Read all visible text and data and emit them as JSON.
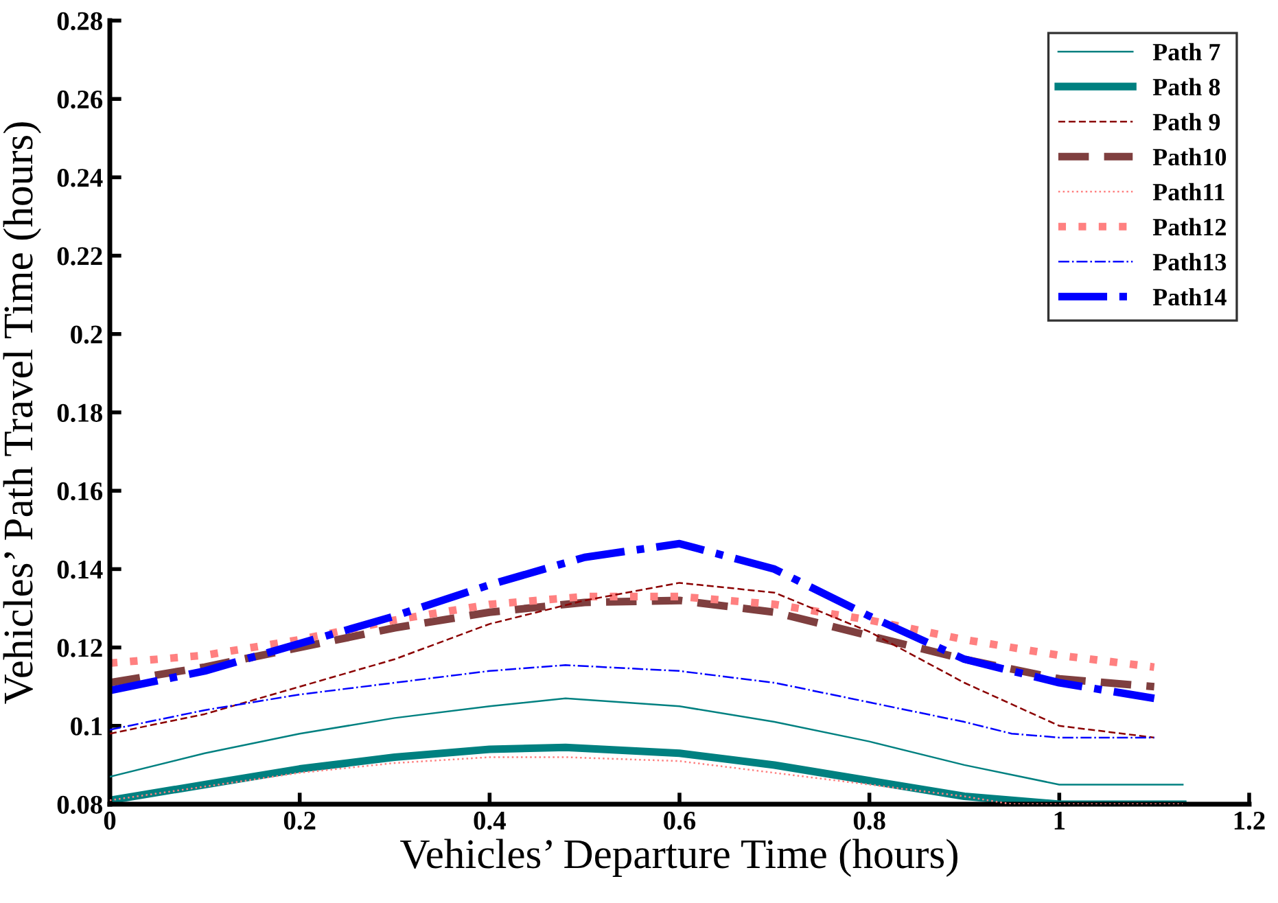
{
  "chart_data": {
    "type": "line",
    "xlabel": "Vehicles’ Departure Time (hours)",
    "ylabel": "Vehicles’ Path Travel Time (hours)",
    "x": [
      0,
      0.1,
      0.2,
      0.3,
      0.4,
      0.5,
      0.6,
      0.7,
      0.8,
      0.9,
      1.0,
      1.1
    ],
    "xlim": [
      0,
      1.2
    ],
    "xticks": [
      0,
      0.2,
      0.4,
      0.6,
      0.8,
      1,
      1.2
    ],
    "ylim": [
      0.08,
      0.28
    ],
    "yticks": [
      0.08,
      0.1,
      0.12,
      0.14,
      0.16,
      0.18,
      0.2,
      0.22,
      0.24,
      0.26,
      0.28
    ],
    "grid": false,
    "legend": "top right",
    "series": [
      {
        "name": "Path 7",
        "color": "#008080",
        "line_style": "solid",
        "x": [
          0,
          0.1,
          0.2,
          0.3,
          0.4,
          0.48,
          0.6,
          0.7,
          0.8,
          0.9,
          1.0,
          1.13
        ],
        "values": [
          0.087,
          0.093,
          0.098,
          0.102,
          0.105,
          0.107,
          0.105,
          0.101,
          0.096,
          0.09,
          0.085,
          0.085
        ]
      },
      {
        "name": "Path 8",
        "color": "#008080",
        "line_style": "solid",
        "x": [
          0,
          0.1,
          0.2,
          0.3,
          0.4,
          0.48,
          0.6,
          0.7,
          0.8,
          0.9,
          0.95,
          1.0,
          1.13
        ],
        "values": [
          0.081,
          0.085,
          0.089,
          0.092,
          0.094,
          0.0945,
          0.093,
          0.09,
          0.086,
          0.082,
          0.081,
          0.08,
          0.08
        ]
      },
      {
        "name": "Path 9",
        "color": "#8b0000",
        "line_style": "dashed",
        "values": [
          0.098,
          0.103,
          0.11,
          0.117,
          0.126,
          0.132,
          0.1365,
          0.134,
          0.124,
          0.111,
          0.1,
          0.097
        ]
      },
      {
        "name": "Path10",
        "color": "#7f3f3f",
        "line_style": "dashed",
        "values": [
          0.111,
          0.115,
          0.12,
          0.125,
          0.129,
          0.1315,
          0.132,
          0.129,
          0.123,
          0.117,
          0.112,
          0.11
        ]
      },
      {
        "name": "Path11",
        "color": "#ff8080",
        "line_style": "dotted",
        "x": [
          0,
          0.1,
          0.2,
          0.3,
          0.4,
          0.48,
          0.6,
          0.7,
          0.8,
          0.9,
          0.95,
          1.0,
          1.13
        ],
        "values": [
          0.081,
          0.0845,
          0.088,
          0.0905,
          0.092,
          0.092,
          0.091,
          0.088,
          0.085,
          0.082,
          0.08,
          0.08,
          0.08
        ]
      },
      {
        "name": "Path12",
        "color": "#ff8080",
        "line_style": "dotted",
        "values": [
          0.116,
          0.118,
          0.122,
          0.127,
          0.131,
          0.133,
          0.133,
          0.131,
          0.127,
          0.122,
          0.118,
          0.115
        ]
      },
      {
        "name": "Path13",
        "color": "#0000ff",
        "line_style": "dashdot",
        "x": [
          0,
          0.1,
          0.2,
          0.3,
          0.4,
          0.48,
          0.6,
          0.7,
          0.8,
          0.9,
          0.95,
          1.0,
          1.1
        ],
        "values": [
          0.099,
          0.104,
          0.108,
          0.111,
          0.114,
          0.1155,
          0.114,
          0.111,
          0.106,
          0.101,
          0.098,
          0.097,
          0.097
        ]
      },
      {
        "name": "Path14",
        "color": "#0000ff",
        "line_style": "dashdot",
        "values": [
          0.109,
          0.114,
          0.121,
          0.128,
          0.136,
          0.143,
          0.1465,
          0.14,
          0.128,
          0.117,
          0.111,
          0.107
        ]
      }
    ]
  }
}
